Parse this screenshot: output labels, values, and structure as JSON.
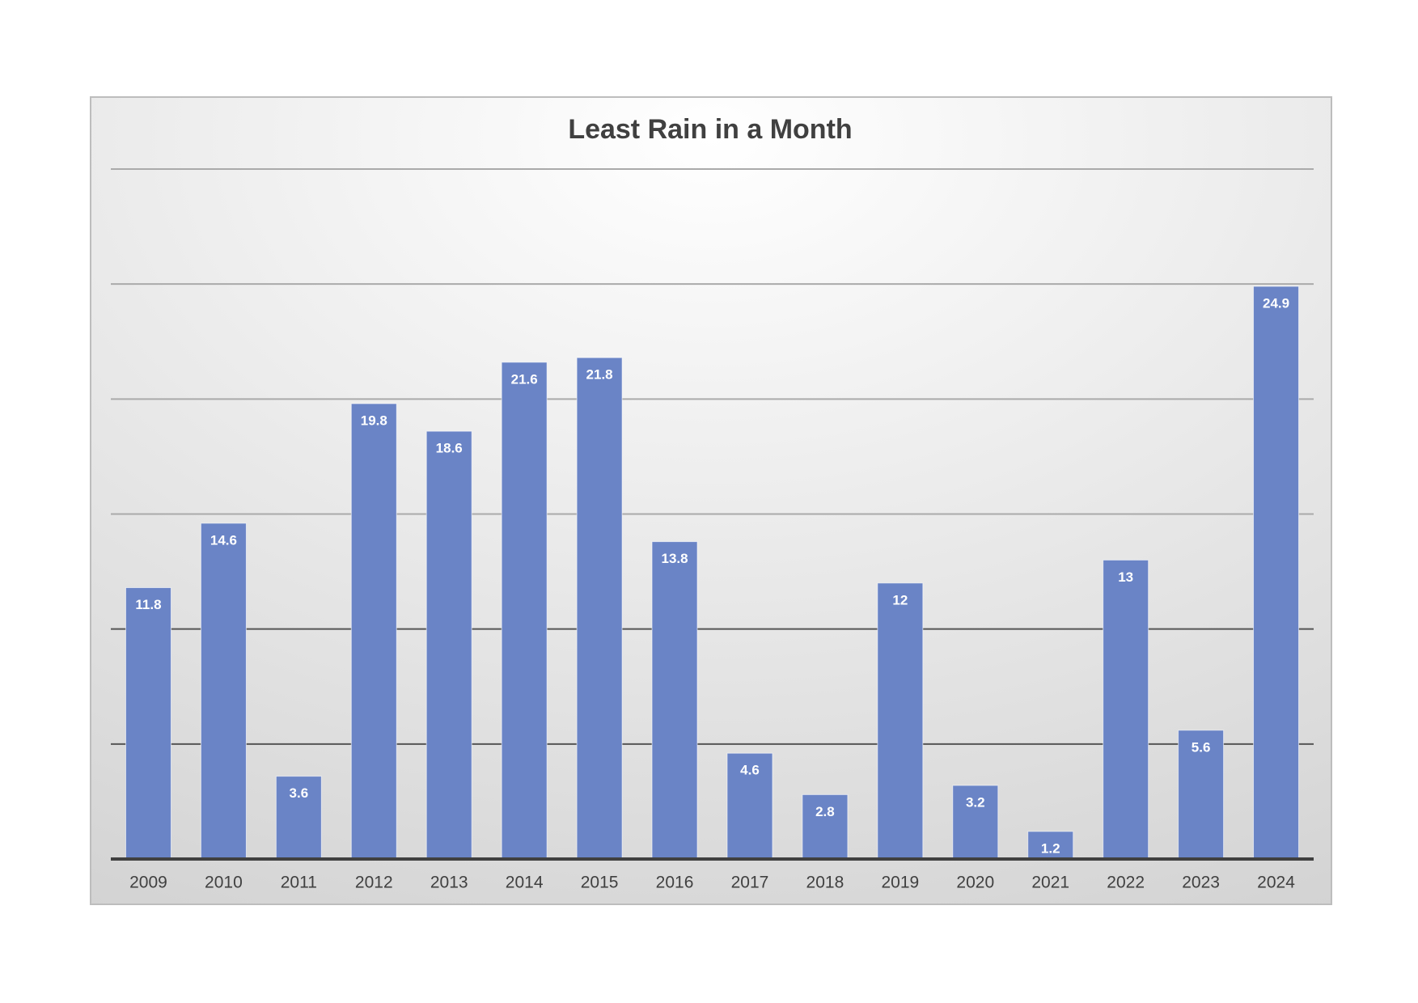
{
  "chart_data": {
    "type": "bar",
    "title": "Least Rain in a Month",
    "categories": [
      "2009",
      "2010",
      "2011",
      "2012",
      "2013",
      "2014",
      "2015",
      "2016",
      "2017",
      "2018",
      "2019",
      "2020",
      "2021",
      "2022",
      "2023",
      "2024"
    ],
    "values": [
      11.8,
      14.6,
      3.6,
      19.8,
      18.6,
      21.6,
      21.8,
      13.8,
      4.6,
      2.8,
      12,
      3.2,
      1.2,
      13,
      5.6,
      24.9
    ],
    "color": "#6a84c6",
    "ylim": [
      0,
      30
    ],
    "yticks": [
      0,
      5,
      10,
      15,
      20,
      25,
      30
    ],
    "grid": true
  }
}
